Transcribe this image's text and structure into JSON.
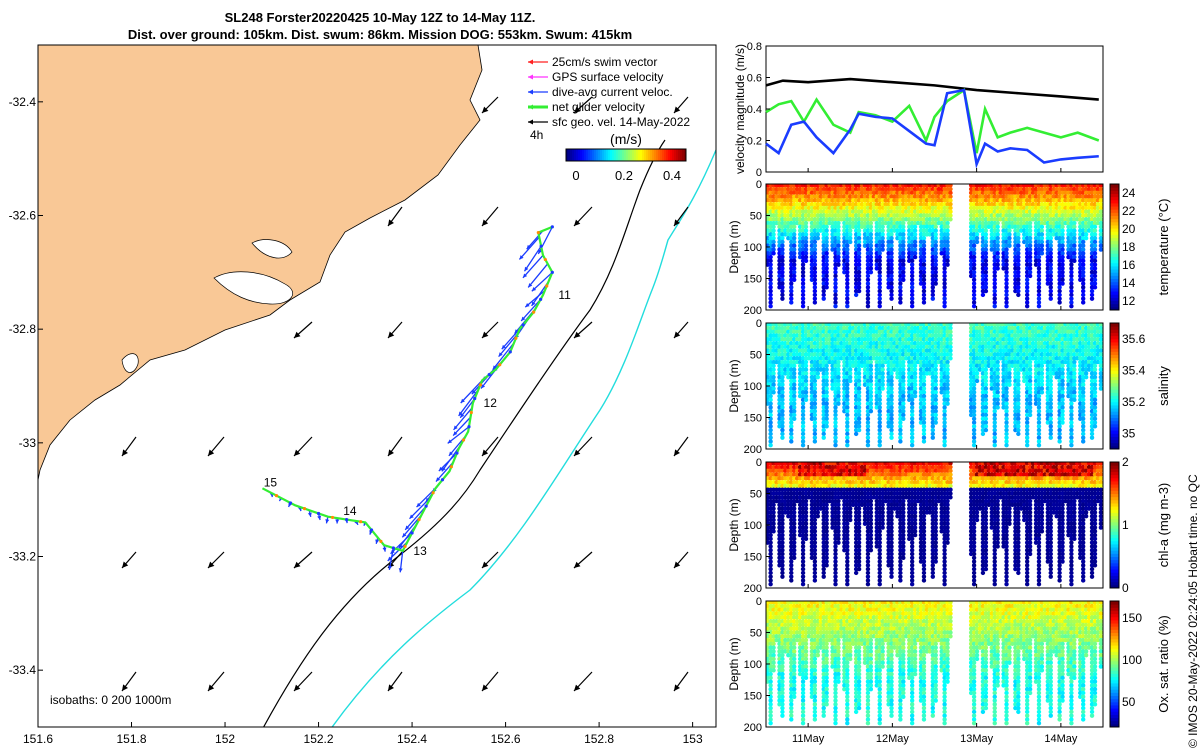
{
  "header": {
    "line1": "SL248 Forster20220425 10-May 12Z to 14-May 11Z.",
    "line2": "Dist. over ground: 105km. Dist. swum: 86km. Mission DOG: 553km. Swum: 415km"
  },
  "credit": "© IMOS 20-May-2022 02:24:05 Hobart time. no QC",
  "colors": {
    "land": "#f9c896",
    "isobath200": "#000000",
    "isobath1000": "#22dddd",
    "swim_vector": "#ff2020",
    "gps_velocity": "#ff33ff",
    "dive_avg": "#1a3cff",
    "net_glider": "#33ee33",
    "sfc_geo": "#000000"
  },
  "chart_data": [
    {
      "id": "map",
      "type": "scatter",
      "title": "Glider track map",
      "x_ticks": [
        "151.6",
        "151.8",
        "152",
        "152.2",
        "152.4",
        "152.6",
        "152.8",
        "153"
      ],
      "y_ticks": [
        "-32.4",
        "-32.6",
        "-32.8",
        "-33",
        "-33.2",
        "-33.4"
      ],
      "xlim": [
        151.6,
        153.05
      ],
      "ylim": [
        -33.5,
        -32.3
      ],
      "legend": [
        "25cm/s swim vector",
        "GPS surface velocity",
        "dive-avg current veloc.",
        "net glider velocity",
        "sfc geo. vel. 14-May-2022"
      ],
      "interval_label": "4h",
      "colorbar": {
        "label": "(m/s)",
        "ticks": [
          "0",
          "0.2",
          "0.4"
        ],
        "range": [
          0,
          0.5
        ]
      },
      "isobaths_label": "isobaths: 0   200  1000m",
      "track": [
        {
          "lon": 152.7,
          "lat": -32.62
        },
        {
          "lon": 152.67,
          "lat": -32.63
        },
        {
          "lon": 152.68,
          "lat": -32.67
        },
        {
          "lon": 152.7,
          "lat": -32.7
        },
        {
          "lon": 152.68,
          "lat": -32.74
        },
        {
          "lon": 152.66,
          "lat": -32.77
        },
        {
          "lon": 152.63,
          "lat": -32.8
        },
        {
          "lon": 152.61,
          "lat": -32.84
        },
        {
          "lon": 152.58,
          "lat": -32.87
        },
        {
          "lon": 152.55,
          "lat": -32.89
        },
        {
          "lon": 152.53,
          "lat": -32.93
        },
        {
          "lon": 152.52,
          "lat": -32.98
        },
        {
          "lon": 152.5,
          "lat": -33.01
        },
        {
          "lon": 152.48,
          "lat": -33.05
        },
        {
          "lon": 152.45,
          "lat": -33.08
        },
        {
          "lon": 152.38,
          "lat": -33.19
        },
        {
          "lon": 152.34,
          "lat": -33.18
        },
        {
          "lon": 152.3,
          "lat": -33.14
        },
        {
          "lon": 152.22,
          "lat": -33.13
        },
        {
          "lon": 152.15,
          "lat": -33.11
        },
        {
          "lon": 152.08,
          "lat": -33.08
        }
      ],
      "day_labels": [
        {
          "label": "11",
          "lon": 152.7,
          "lat": -32.74
        },
        {
          "label": "12",
          "lon": 152.54,
          "lat": -32.93
        },
        {
          "label": "13",
          "lon": 152.39,
          "lat": -33.19
        },
        {
          "label": "14",
          "lon": 152.24,
          "lat": -33.12
        },
        {
          "label": "15",
          "lon": 152.07,
          "lat": -33.07
        }
      ]
    },
    {
      "id": "velocity",
      "type": "line",
      "ylabel": "velocity magnitude (m/s)",
      "ylim": [
        0,
        0.8
      ],
      "y_ticks": [
        "0",
        "0.2",
        "0.4",
        "0.6",
        "0.8"
      ],
      "series": [
        {
          "name": "sfc geo",
          "color": "#000000",
          "x": [
            10.5,
            10.7,
            11.0,
            11.5,
            12.0,
            12.5,
            13.0,
            13.5,
            14.0,
            14.45
          ],
          "values": [
            0.55,
            0.58,
            0.57,
            0.59,
            0.57,
            0.55,
            0.52,
            0.5,
            0.48,
            0.46
          ]
        },
        {
          "name": "net glider",
          "color": "#33ee33",
          "x": [
            10.5,
            10.65,
            10.8,
            10.95,
            11.1,
            11.3,
            11.5,
            11.6,
            11.8,
            12.0,
            12.2,
            12.4,
            12.5,
            12.65,
            12.85,
            13.0,
            13.1,
            13.25,
            13.4,
            13.6,
            13.8,
            14.0,
            14.2,
            14.45
          ],
          "values": [
            0.38,
            0.43,
            0.45,
            0.32,
            0.46,
            0.3,
            0.25,
            0.38,
            0.36,
            0.32,
            0.42,
            0.2,
            0.35,
            0.45,
            0.52,
            0.12,
            0.4,
            0.22,
            0.25,
            0.28,
            0.25,
            0.22,
            0.25,
            0.2
          ]
        },
        {
          "name": "dive-avg",
          "color": "#1a3cff",
          "x": [
            10.5,
            10.65,
            10.8,
            10.95,
            11.1,
            11.3,
            11.5,
            11.6,
            11.8,
            12.0,
            12.2,
            12.4,
            12.5,
            12.65,
            12.85,
            13.0,
            13.1,
            13.25,
            13.4,
            13.6,
            13.8,
            14.0,
            14.2,
            14.45
          ],
          "values": [
            0.18,
            0.12,
            0.3,
            0.32,
            0.22,
            0.12,
            0.27,
            0.37,
            0.35,
            0.34,
            0.26,
            0.18,
            0.17,
            0.5,
            0.52,
            0.05,
            0.18,
            0.13,
            0.15,
            0.14,
            0.06,
            0.08,
            0.09,
            0.1
          ]
        }
      ]
    },
    {
      "id": "temperature",
      "type": "scatter",
      "ylabel": "Depth (m)",
      "colorbar_label": "temperature (°C)",
      "colorbar_ticks": [
        "12",
        "14",
        "16",
        "18",
        "20",
        "22",
        "24"
      ],
      "crange": [
        11,
        25
      ],
      "y_ticks": [
        "0",
        "50",
        "100",
        "150",
        "200"
      ],
      "surface_value": 23,
      "bottom_value": 12.5
    },
    {
      "id": "salinity",
      "type": "scatter",
      "ylabel": "Depth (m)",
      "colorbar_label": "salinity",
      "colorbar_ticks": [
        "35",
        "35.2",
        "35.4",
        "35.6"
      ],
      "crange": [
        34.9,
        35.7
      ],
      "y_ticks": [
        "0",
        "50",
        "100",
        "150",
        "200"
      ],
      "surface_value": 35.25,
      "bottom_value": 35.15
    },
    {
      "id": "chla",
      "type": "scatter",
      "ylabel": "Depth (m)",
      "colorbar_label": "chl-a (mg m-3)",
      "colorbar_ticks": [
        "0",
        "1",
        "2"
      ],
      "crange": [
        0,
        2
      ],
      "y_ticks": [
        "0",
        "50",
        "100",
        "150",
        "200"
      ],
      "surface_value": 1.8,
      "bottom_value": 0.05
    },
    {
      "id": "oxygen",
      "type": "scatter",
      "ylabel": "Depth (m)",
      "colorbar_label": "Ox. sat. ratio (%)",
      "colorbar_ticks": [
        "50",
        "100",
        "150"
      ],
      "crange": [
        20,
        170
      ],
      "y_ticks": [
        "0",
        "50",
        "100",
        "150",
        "200"
      ],
      "surface_value": 115,
      "bottom_value": 80
    }
  ],
  "time_axis": {
    "ticks": [
      "11May",
      "12May",
      "13May",
      "14May"
    ],
    "tick_days": [
      11,
      12,
      13,
      14
    ],
    "xlim": [
      10.5,
      14.5
    ]
  }
}
